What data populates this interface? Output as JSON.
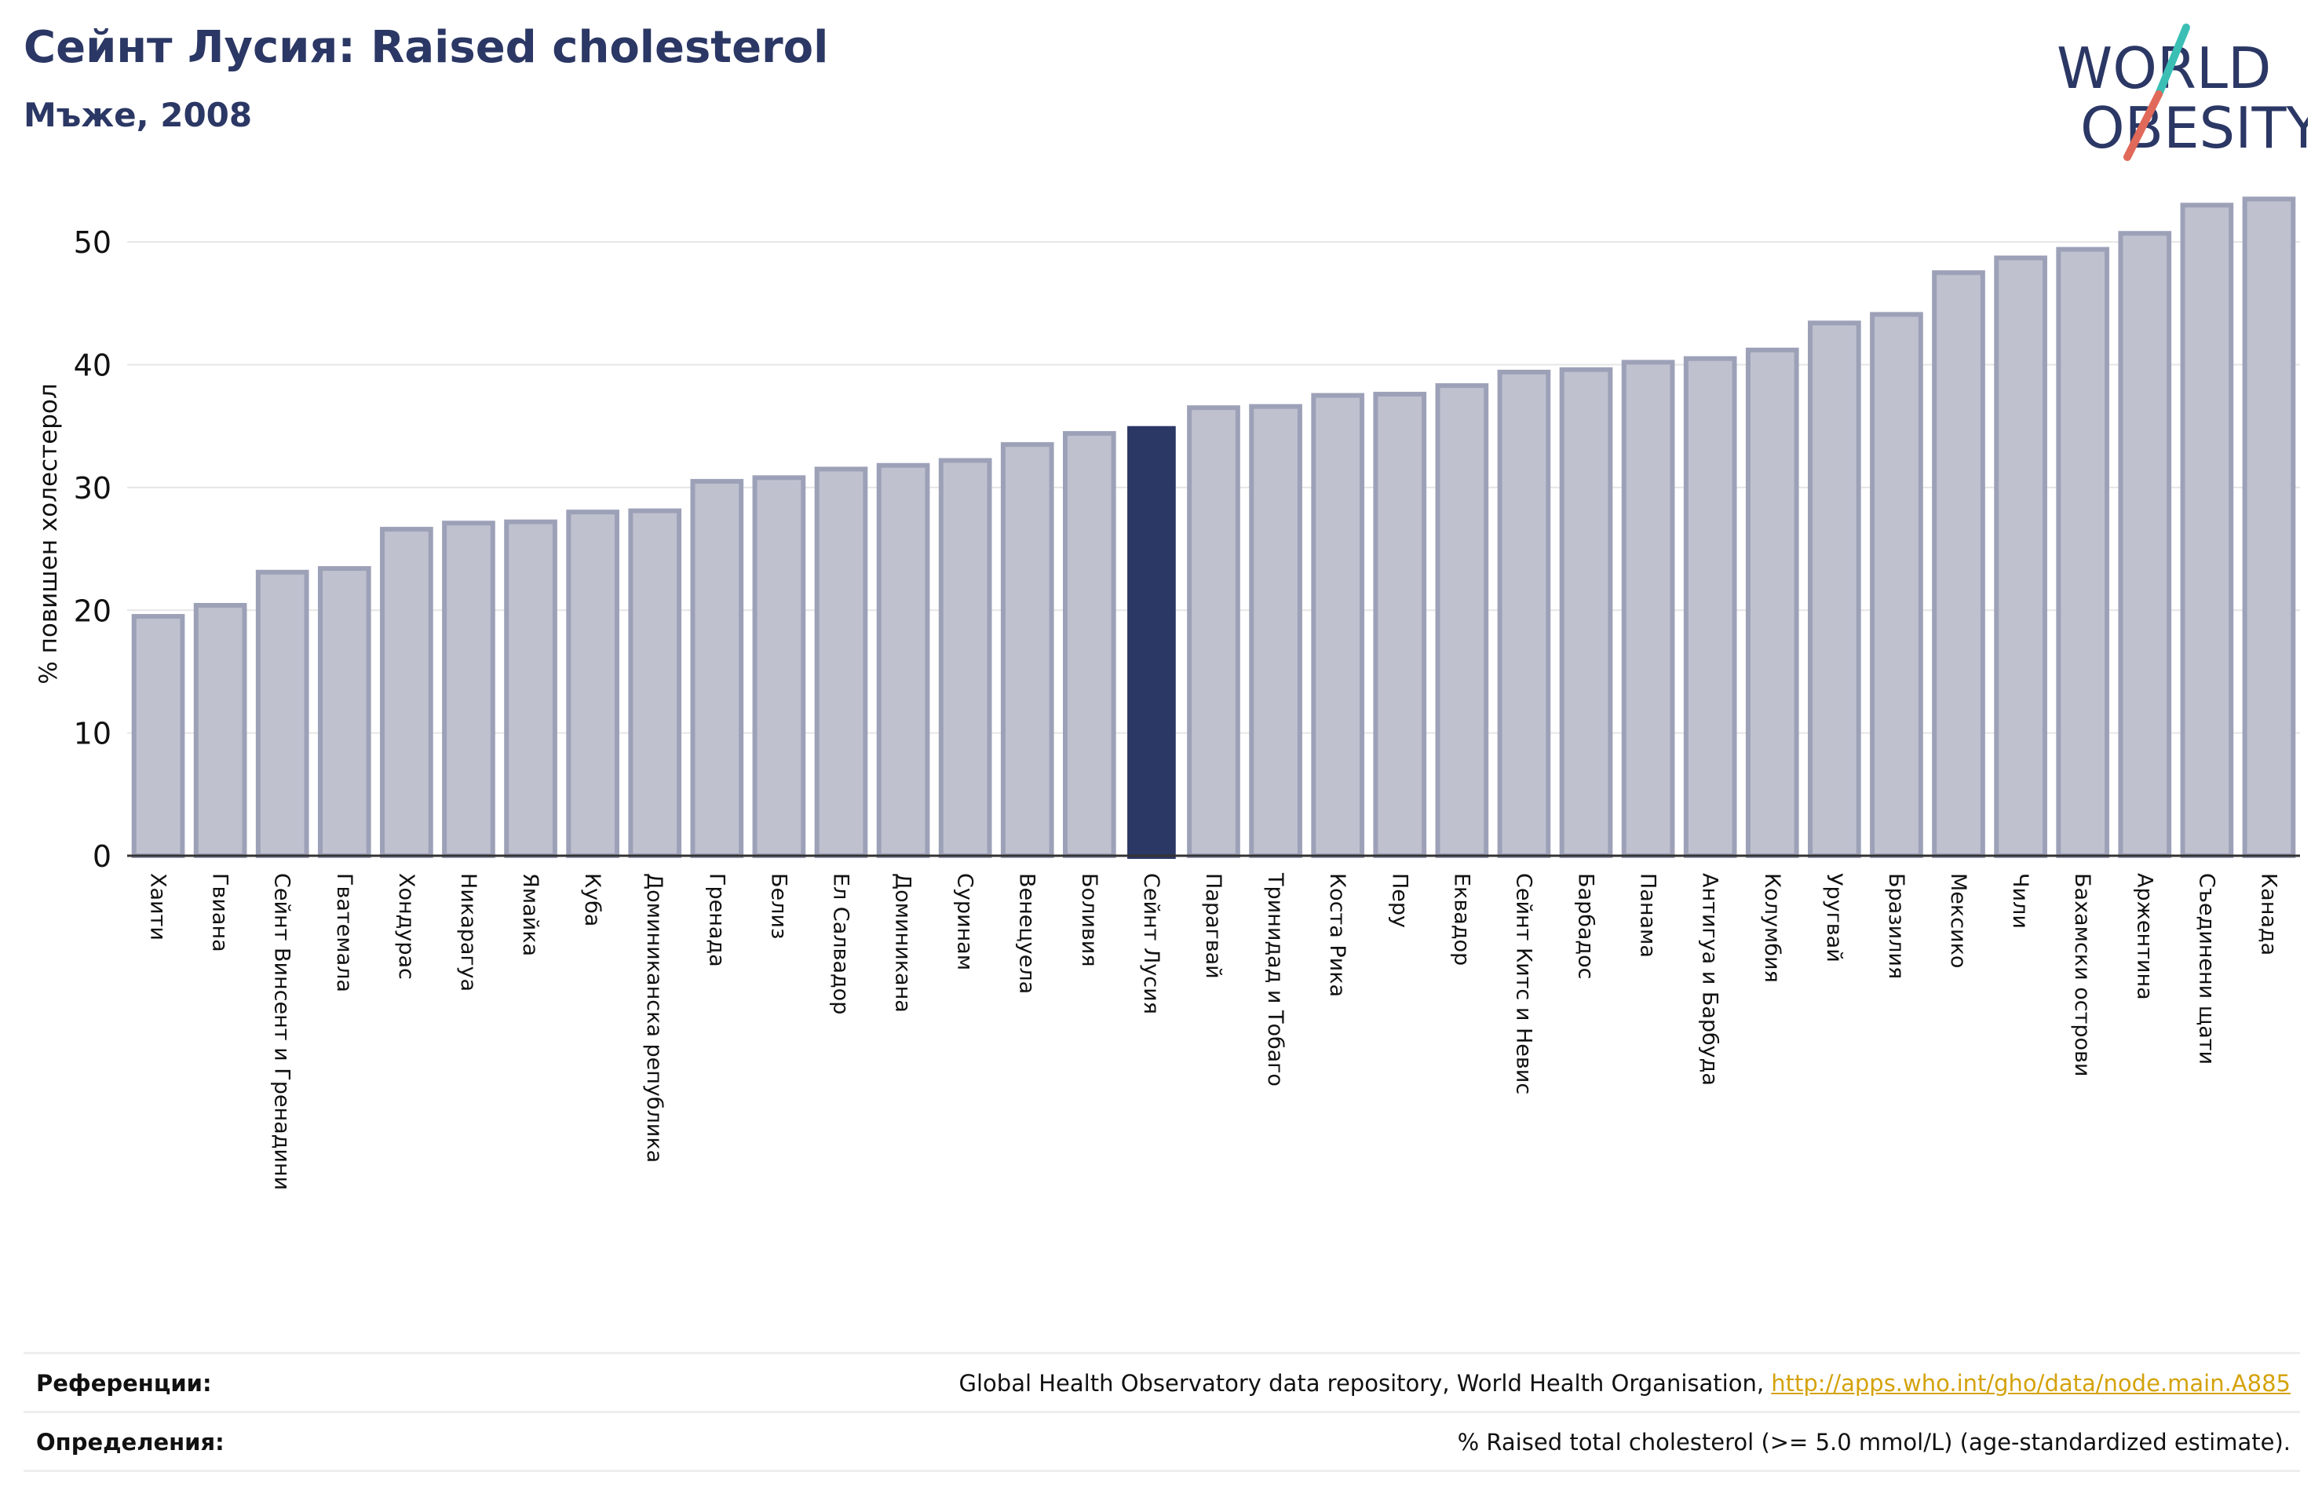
{
  "header": {
    "title": "Сейнт Лусия: Raised cholesterol",
    "subtitle": "Мъже, 2008"
  },
  "logo": {
    "line1": "WORLD",
    "line2": "OBESITY",
    "colors": {
      "text": "#2b3764",
      "slash_teal": "#3bbfb5",
      "slash_red": "#e0695a"
    }
  },
  "colors": {
    "bar": "#bfc1cf",
    "bar_border": "#9da1b8",
    "highlight": "#2b3764",
    "grid": "#e6e6e6",
    "axis": "#333333"
  },
  "chart_data": {
    "type": "bar",
    "ylabel": "% повишен холестерол",
    "ylim": [
      0,
      55
    ],
    "yticks": [
      0,
      10,
      20,
      30,
      40,
      50
    ],
    "grid": true,
    "highlight": "Сейнт Лусия",
    "categories": [
      "Хаити",
      "Гвиана",
      "Сейнт Винсент и Гренадини",
      "Гватемала",
      "Хондурас",
      "Никарагуа",
      "Ямайка",
      "Куба",
      "Доминиканска република",
      "Гренада",
      "Белиз",
      "Ел Салвадор",
      "Доминикана",
      "Суринам",
      "Венецуела",
      "Боливия",
      "Сейнт Лусия",
      "Парагвай",
      "Тринидад и Тобаго",
      "Коста Рика",
      "Перу",
      "Еквадор",
      "Сейнт Китс и Невис",
      "Барбадос",
      "Панама",
      "Антигуа и Барбуда",
      "Колумбия",
      "Уругвай",
      "Бразилия",
      "Мексико",
      "Чили",
      "Бахамски острови",
      "Аржентина",
      "Съединени щати",
      "Канада"
    ],
    "values": [
      19.5,
      20.4,
      23.1,
      23.4,
      26.6,
      27.1,
      27.2,
      28.0,
      28.1,
      30.5,
      30.8,
      31.5,
      31.8,
      32.2,
      33.5,
      34.4,
      35.0,
      36.5,
      36.6,
      37.5,
      37.6,
      38.3,
      39.4,
      39.6,
      40.2,
      40.5,
      41.2,
      43.4,
      44.1,
      47.5,
      48.7,
      49.4,
      50.7,
      53.0,
      53.5
    ]
  },
  "references": {
    "refs_label": "Референции:",
    "refs_text": "Global Health Observatory data repository, World Health Organisation, ",
    "refs_link": "http://apps.who.int/gho/data/node.main.A885",
    "defs_label": "Определения:",
    "defs_text": "% Raised total cholesterol (>= 5.0 mmol/L) (age-standardized estimate)."
  }
}
